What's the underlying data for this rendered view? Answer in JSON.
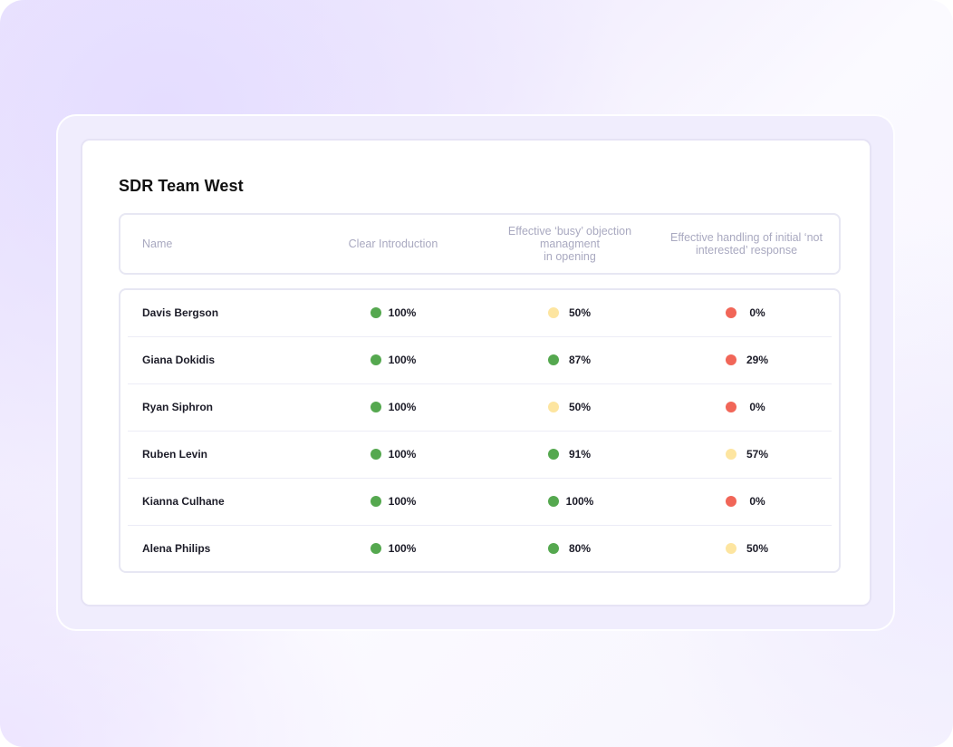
{
  "colors": {
    "green": "#55a84f",
    "yellow": "#fde5a0",
    "red": "#f16658"
  },
  "card": {
    "title": "SDR Team West"
  },
  "table": {
    "headers": {
      "name": "Name",
      "col1": "Clear Introduction",
      "col2": "Effective ‘busy’ objection\nmanagment\nin opening",
      "col3": "Effective handling of initial ‘not\ninterested’ response"
    },
    "rows": [
      {
        "name": "Davis Bergson",
        "c1": {
          "value": "100%",
          "status": "green"
        },
        "c2": {
          "value": "50%",
          "status": "yellow"
        },
        "c3": {
          "value": "0%",
          "status": "red"
        }
      },
      {
        "name": "Giana Dokidis",
        "c1": {
          "value": "100%",
          "status": "green"
        },
        "c2": {
          "value": "87%",
          "status": "green"
        },
        "c3": {
          "value": "29%",
          "status": "red"
        }
      },
      {
        "name": "Ryan Siphron",
        "c1": {
          "value": "100%",
          "status": "green"
        },
        "c2": {
          "value": "50%",
          "status": "yellow"
        },
        "c3": {
          "value": "0%",
          "status": "red"
        }
      },
      {
        "name": "Ruben Levin",
        "c1": {
          "value": "100%",
          "status": "green"
        },
        "c2": {
          "value": "91%",
          "status": "green"
        },
        "c3": {
          "value": "57%",
          "status": "yellow"
        }
      },
      {
        "name": "Kianna Culhane",
        "c1": {
          "value": "100%",
          "status": "green"
        },
        "c2": {
          "value": "100%",
          "status": "green"
        },
        "c3": {
          "value": "0%",
          "status": "red"
        }
      },
      {
        "name": "Alena Philips",
        "c1": {
          "value": "100%",
          "status": "green"
        },
        "c2": {
          "value": "80%",
          "status": "green"
        },
        "c3": {
          "value": "50%",
          "status": "yellow"
        }
      }
    ]
  }
}
